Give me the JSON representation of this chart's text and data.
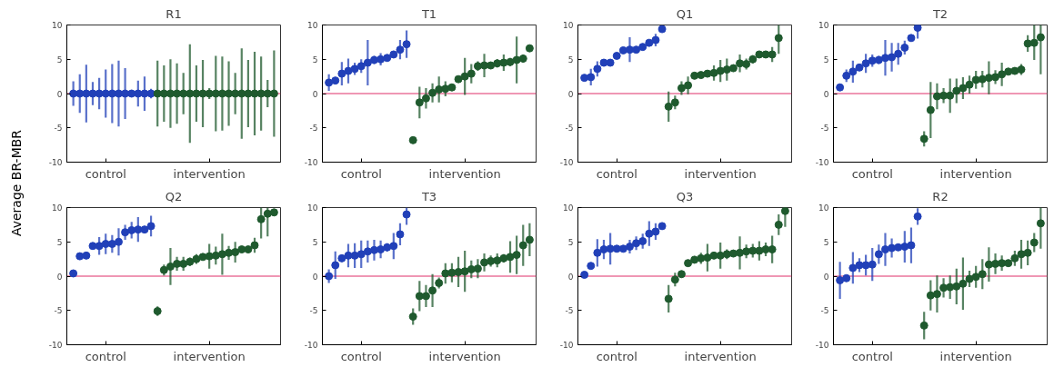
{
  "chart_data": [
    {
      "type": "scatter",
      "title": "R1",
      "ylabel": "Average BR-MBR",
      "categories": [
        null,
        null,
        null,
        null,
        null,
        "control",
        null,
        null,
        null,
        null,
        null,
        null,
        null,
        null,
        null,
        null,
        null,
        null,
        null,
        null,
        null,
        "intervention",
        null,
        null,
        null,
        null,
        null,
        null,
        null,
        null,
        null,
        null
      ],
      "ylim": [
        -10,
        10
      ],
      "yticks": [
        -10,
        -5,
        0,
        5,
        10
      ],
      "grid": false,
      "marker": "circle",
      "ref_lines": [
        {
          "axis": "y",
          "value": 0,
          "color": "#e0306a"
        }
      ],
      "series": [
        {
          "color": "#2140b8",
          "values": [
            0,
            0,
            0,
            0,
            0,
            0,
            0,
            0,
            0,
            0,
            0,
            0,
            0,
            null,
            null,
            null,
            null,
            null,
            null,
            null,
            null,
            null,
            null,
            null,
            null,
            null,
            null,
            null,
            null,
            null,
            null,
            null
          ],
          "errors": [
            1.8,
            2.8,
            4.2,
            1.7,
            2.3,
            3.5,
            4.3,
            4.8,
            3.7,
            0.5,
            1.9,
            2.5,
            0.7,
            null,
            null,
            null,
            null,
            null,
            null,
            null,
            null,
            null,
            null,
            null,
            null,
            null,
            null,
            null,
            null,
            null,
            null,
            null
          ]
        },
        {
          "color": "#1f5a2e",
          "values": [
            null,
            null,
            null,
            null,
            null,
            null,
            null,
            null,
            null,
            null,
            null,
            null,
            null,
            0,
            0,
            0,
            0,
            0,
            0,
            0,
            0,
            0,
            0,
            0,
            0,
            0,
            0,
            0,
            0,
            0,
            0,
            0
          ],
          "errors": [
            null,
            null,
            null,
            null,
            null,
            null,
            null,
            null,
            null,
            null,
            null,
            null,
            null,
            4.8,
            4.1,
            5.0,
            4.4,
            3.0,
            7.2,
            4.1,
            4.9,
            0.8,
            5.5,
            5.4,
            4.7,
            3.0,
            6.6,
            4.9,
            6.1,
            5.4,
            2.0,
            6.3
          ]
        }
      ]
    },
    {
      "type": "scatter",
      "title": "T1",
      "categories": [
        null,
        null,
        null,
        null,
        null,
        "control",
        null,
        null,
        null,
        null,
        null,
        null,
        null,
        null,
        null,
        null,
        null,
        null,
        null,
        null,
        null,
        "intervention",
        null,
        null,
        null,
        null,
        null,
        null,
        null,
        null,
        null,
        null
      ],
      "ylim": [
        -10,
        10
      ],
      "yticks": [
        -10,
        -5,
        0,
        5,
        10
      ],
      "grid": false,
      "marker": "circle",
      "ref_lines": [
        {
          "axis": "y",
          "value": 0,
          "color": "#e0306a"
        }
      ],
      "series": [
        {
          "color": "#2140b8",
          "values": [
            1.6,
            1.9,
            2.9,
            3.3,
            3.6,
            4.0,
            4.5,
            4.9,
            5.0,
            5.2,
            5.7,
            6.4,
            7.2,
            null,
            null,
            null,
            null,
            null,
            null,
            null,
            null,
            null,
            null,
            null,
            null,
            null,
            null,
            null,
            null,
            null,
            null,
            null
          ],
          "errors": [
            1.2,
            0.5,
            1.7,
            1.8,
            0.9,
            1.0,
            3.3,
            0.6,
            0.9,
            0.4,
            0.3,
            1.4,
            2.0,
            null,
            null,
            null,
            null,
            null,
            null,
            null,
            null,
            null,
            null,
            null,
            null,
            null,
            null,
            null,
            null,
            null,
            null,
            null
          ]
        },
        {
          "color": "#1f5a2e",
          "values": [
            null,
            null,
            null,
            null,
            null,
            null,
            null,
            null,
            null,
            null,
            null,
            null,
            null,
            -6.8,
            -1.3,
            -0.7,
            0.1,
            0.6,
            0.7,
            0.9,
            2.1,
            2.5,
            2.9,
            4.0,
            4.1,
            4.1,
            4.4,
            4.5,
            4.6,
            4.9,
            5.1,
            6.6
          ],
          "errors": [
            null,
            null,
            null,
            null,
            null,
            null,
            null,
            null,
            null,
            null,
            null,
            null,
            null,
            null,
            2.3,
            1.5,
            1.4,
            1.9,
            1.1,
            0.3,
            0.3,
            2.7,
            1.4,
            0.7,
            1.7,
            0.4,
            0.6,
            1.2,
            0.6,
            3.4,
            0.6,
            0.3
          ]
        }
      ]
    },
    {
      "type": "scatter",
      "title": "Q1",
      "categories": [
        null,
        null,
        null,
        null,
        null,
        "control",
        null,
        null,
        null,
        null,
        null,
        null,
        null,
        null,
        null,
        null,
        null,
        null,
        null,
        null,
        null,
        "intervention",
        null,
        null,
        null,
        null,
        null,
        null,
        null,
        null,
        null,
        null
      ],
      "ylim": [
        -10,
        10
      ],
      "yticks": [
        -10,
        -5,
        0,
        5,
        10
      ],
      "grid": false,
      "marker": "circle",
      "ref_lines": [
        {
          "axis": "y",
          "value": 0,
          "color": "#e0306a"
        }
      ],
      "series": [
        {
          "color": "#2140b8",
          "values": [
            2.3,
            2.4,
            3.6,
            4.5,
            4.5,
            5.5,
            6.3,
            6.4,
            6.4,
            6.8,
            7.4,
            7.8,
            9.4,
            null,
            null,
            null,
            null,
            null,
            null,
            null,
            null,
            null,
            null,
            null,
            null,
            null,
            null,
            null,
            null,
            null,
            null,
            null
          ],
          "errors": [
            0.3,
            1.2,
            1.1,
            0.5,
            0.3,
            0.3,
            0.4,
            1.8,
            0.3,
            0.3,
            0.4,
            0.9,
            0.3,
            null,
            null,
            null,
            null,
            null,
            null,
            null,
            null,
            null,
            null,
            null,
            null,
            null,
            null,
            null,
            null,
            null,
            null,
            null
          ]
        },
        {
          "color": "#1f5a2e",
          "values": [
            null,
            null,
            null,
            null,
            null,
            null,
            null,
            null,
            null,
            null,
            null,
            null,
            null,
            -1.9,
            -1.3,
            0.8,
            1.2,
            2.6,
            2.7,
            2.9,
            3.0,
            3.3,
            3.5,
            3.7,
            4.4,
            4.3,
            5.0,
            5.7,
            5.7,
            5.7,
            8.1,
            null
          ],
          "errors": [
            null,
            null,
            null,
            null,
            null,
            null,
            null,
            null,
            null,
            null,
            null,
            null,
            null,
            2.2,
            1.0,
            1.0,
            1.3,
            0.4,
            0.3,
            0.3,
            1.1,
            1.6,
            1.6,
            0.3,
            1.3,
            0.8,
            0.6,
            0.3,
            0.5,
            1.1,
            [
              5.8,
              10
            ],
            null
          ]
        }
      ]
    },
    {
      "type": "scatter",
      "title": "T2",
      "categories": [
        null,
        null,
        null,
        null,
        null,
        "control",
        null,
        null,
        null,
        null,
        null,
        null,
        null,
        null,
        null,
        null,
        null,
        null,
        null,
        null,
        null,
        "intervention",
        null,
        null,
        null,
        null,
        null,
        null,
        null,
        null,
        null,
        null
      ],
      "ylim": [
        -10,
        10
      ],
      "yticks": [
        -10,
        -5,
        0,
        5,
        10
      ],
      "grid": false,
      "marker": "circle",
      "ref_lines": [
        {
          "axis": "y",
          "value": 0,
          "color": "#e0306a"
        }
      ],
      "series": [
        {
          "color": "#2140b8",
          "values": [
            0.9,
            2.6,
            3.2,
            3.8,
            4.4,
            4.8,
            4.9,
            5.2,
            5.3,
            5.8,
            6.7,
            8.1,
            9.6,
            null,
            null,
            null,
            null,
            null,
            null,
            null,
            null,
            null,
            null,
            null,
            null,
            null,
            null,
            null,
            null,
            null,
            null,
            null
          ],
          "errors": [
            0.5,
            0.9,
            1.6,
            0.5,
            1.4,
            0.9,
            0.6,
            2.6,
            2.1,
            1.6,
            1.0,
            0.5,
            [
              8.0,
              10
            ],
            null,
            null,
            null,
            null,
            null,
            null,
            null,
            null,
            null,
            null,
            null,
            null,
            null,
            null,
            null,
            null,
            null,
            null,
            null
          ]
        },
        {
          "color": "#1f5a2e",
          "values": [
            null,
            null,
            null,
            null,
            null,
            null,
            null,
            null,
            null,
            null,
            null,
            null,
            null,
            -6.6,
            -2.4,
            -0.4,
            -0.3,
            -0.3,
            0.4,
            0.8,
            1.3,
            2.0,
            2.1,
            2.3,
            2.4,
            2.8,
            3.2,
            3.3,
            3.5,
            7.3,
            7.4,
            8.2
          ],
          "errors": [
            null,
            null,
            null,
            null,
            null,
            null,
            null,
            null,
            null,
            null,
            null,
            null,
            null,
            1.1,
            4.1,
            1.9,
            1.1,
            2.5,
            1.8,
            1.6,
            1.3,
            1.3,
            1.2,
            2.4,
            1.0,
            1.7,
            0.4,
            0.5,
            0.8,
            1.2,
            [
              4.9,
              10
            ],
            [
              2.8,
              10
            ]
          ]
        }
      ]
    },
    {
      "type": "scatter",
      "title": "Q2",
      "categories": [
        null,
        null,
        null,
        null,
        null,
        "control",
        null,
        null,
        null,
        null,
        null,
        null,
        null,
        null,
        null,
        null,
        null,
        null,
        null,
        null,
        null,
        "intervention",
        null,
        null,
        null,
        null,
        null,
        null,
        null,
        null,
        null,
        null
      ],
      "ylim": [
        -10,
        10
      ],
      "yticks": [
        -10,
        -5,
        0,
        5,
        10
      ],
      "grid": false,
      "marker": "circle",
      "ref_lines": [
        {
          "axis": "y",
          "value": 0,
          "color": "#e0306a"
        }
      ],
      "series": [
        {
          "color": "#2140b8",
          "values": [
            0.4,
            2.9,
            3.0,
            4.4,
            4.4,
            4.7,
            4.7,
            5.0,
            6.4,
            6.7,
            6.8,
            6.8,
            7.3,
            null,
            null,
            null,
            null,
            null,
            null,
            null,
            null,
            null,
            null,
            null,
            null,
            null,
            null,
            null,
            null,
            null,
            null,
            null
          ],
          "errors": [
            0.2,
            0.5,
            0.4,
            0.3,
            1.3,
            1.5,
            1.3,
            2.0,
            1.1,
            1.2,
            1.8,
            0.3,
            1.5,
            null,
            null,
            null,
            null,
            null,
            null,
            null,
            null,
            null,
            null,
            null,
            null,
            null,
            null,
            null,
            null,
            null,
            null,
            null
          ]
        },
        {
          "color": "#1f5a2e",
          "values": [
            null,
            null,
            null,
            null,
            null,
            null,
            null,
            null,
            null,
            null,
            null,
            null,
            null,
            -5.1,
            0.9,
            1.4,
            1.8,
            1.8,
            2.1,
            2.5,
            2.8,
            2.9,
            3.0,
            3.2,
            3.4,
            3.5,
            3.9,
            3.9,
            4.5,
            8.3,
            9.1,
            9.3
          ],
          "errors": [
            null,
            null,
            null,
            null,
            null,
            null,
            null,
            null,
            null,
            null,
            null,
            null,
            null,
            0.7,
            0.8,
            2.7,
            1.0,
            1.0,
            0.6,
            0.7,
            0.3,
            1.8,
            1.3,
            3.0,
            1.0,
            1.5,
            0.3,
            0.3,
            1.1,
            [
              5.5,
              10
            ],
            [
              5.8,
              10
            ],
            0.5
          ]
        }
      ]
    },
    {
      "type": "scatter",
      "title": "T3",
      "categories": [
        null,
        null,
        null,
        null,
        null,
        "control",
        null,
        null,
        null,
        null,
        null,
        null,
        null,
        null,
        null,
        null,
        null,
        null,
        null,
        null,
        null,
        "intervention",
        null,
        null,
        null,
        null,
        null,
        null,
        null,
        null,
        null,
        null
      ],
      "ylim": [
        -10,
        10
      ],
      "yticks": [
        -10,
        -5,
        0,
        5,
        10
      ],
      "grid": false,
      "marker": "circle",
      "ref_lines": [
        {
          "axis": "y",
          "value": 0,
          "color": "#e0306a"
        }
      ],
      "series": [
        {
          "color": "#2140b8",
          "values": [
            0.0,
            1.6,
            2.6,
            3.0,
            3.0,
            3.2,
            3.6,
            3.8,
            3.9,
            4.2,
            4.4,
            6.1,
            9.0,
            null,
            null,
            null,
            null,
            null,
            null,
            null,
            null,
            null,
            null,
            null,
            null,
            null,
            null,
            null,
            null,
            null,
            null,
            null
          ],
          "errors": [
            1.0,
            2.0,
            0.5,
            1.7,
            1.8,
            2.0,
            1.6,
            1.5,
            1.3,
            0.6,
            1.9,
            1.6,
            [
              7.5,
              10
            ],
            null,
            null,
            null,
            null,
            null,
            null,
            null,
            null,
            null,
            null,
            null,
            null,
            null,
            null,
            null,
            null,
            null,
            null,
            null
          ]
        },
        {
          "color": "#1f5a2e",
          "values": [
            null,
            null,
            null,
            null,
            null,
            null,
            null,
            null,
            null,
            null,
            null,
            null,
            null,
            -5.9,
            -2.9,
            -2.9,
            -2.1,
            -1.0,
            0.4,
            0.5,
            0.6,
            0.7,
            1.0,
            1.1,
            2.0,
            2.2,
            2.3,
            2.6,
            2.8,
            3.1,
            4.5,
            5.3
          ],
          "errors": [
            null,
            null,
            null,
            null,
            null,
            null,
            null,
            null,
            null,
            null,
            null,
            null,
            null,
            1.2,
            2.2,
            1.6,
            2.4,
            0.8,
            1.5,
            1.4,
            2.2,
            3.0,
            1.3,
            1.4,
            1.3,
            0.8,
            1.0,
            0.6,
            2.3,
            2.8,
            3.0,
            2.4
          ]
        }
      ]
    },
    {
      "type": "scatter",
      "title": "Q3",
      "categories": [
        null,
        null,
        null,
        null,
        null,
        "control",
        null,
        null,
        null,
        null,
        null,
        null,
        null,
        null,
        null,
        null,
        null,
        null,
        null,
        null,
        null,
        "intervention",
        null,
        null,
        null,
        null,
        null,
        null,
        null,
        null,
        null,
        null
      ],
      "ylim": [
        -10,
        10
      ],
      "yticks": [
        -10,
        -5,
        0,
        5,
        10
      ],
      "grid": false,
      "marker": "circle",
      "ref_lines": [
        {
          "axis": "y",
          "value": 0,
          "color": "#e0306a"
        }
      ],
      "series": [
        {
          "color": "#2140b8",
          "values": [
            0.2,
            1.5,
            3.4,
            3.9,
            4.0,
            4.0,
            4.0,
            4.3,
            4.8,
            5.1,
            6.2,
            6.5,
            7.3,
            null,
            null,
            null,
            null,
            null,
            null,
            null,
            null,
            null,
            null,
            null,
            null,
            null,
            null,
            null,
            null,
            null,
            null,
            null
          ],
          "errors": [
            0.2,
            0.2,
            2.0,
            1.4,
            2.3,
            0.4,
            0.4,
            1.0,
            1.0,
            1.1,
            1.8,
            1.2,
            0.2,
            null,
            null,
            null,
            null,
            null,
            null,
            null,
            null,
            null,
            null,
            null,
            null,
            null,
            null,
            null,
            null,
            null,
            null,
            null
          ]
        },
        {
          "color": "#1f5a2e",
          "values": [
            null,
            null,
            null,
            null,
            null,
            null,
            null,
            null,
            null,
            null,
            null,
            null,
            null,
            -3.3,
            -0.5,
            0.3,
            1.9,
            2.4,
            2.6,
            2.7,
            3.0,
            3.0,
            3.2,
            3.3,
            3.4,
            3.6,
            3.7,
            3.7,
            3.9,
            3.9,
            7.5,
            9.5
          ],
          "errors": [
            null,
            null,
            null,
            null,
            null,
            null,
            null,
            null,
            null,
            null,
            null,
            null,
            null,
            2.0,
            1.0,
            0.5,
            0.4,
            0.2,
            0.8,
            2.0,
            0.3,
            1.9,
            0.7,
            0.3,
            2.4,
            1.0,
            1.0,
            1.4,
            1.0,
            2.0,
            1.5,
            [
              7.2,
              10
            ]
          ]
        }
      ]
    },
    {
      "type": "scatter",
      "title": "R2",
      "categories": [
        null,
        null,
        null,
        null,
        null,
        "control",
        null,
        null,
        null,
        null,
        null,
        null,
        null,
        null,
        null,
        null,
        null,
        null,
        null,
        null,
        null,
        "intervention",
        null,
        null,
        null,
        null,
        null,
        null,
        null,
        null,
        null,
        null
      ],
      "ylim": [
        -10,
        10
      ],
      "yticks": [
        -10,
        -5,
        0,
        5,
        10
      ],
      "grid": false,
      "marker": "circle",
      "ref_lines": [
        {
          "axis": "y",
          "value": 0,
          "color": "#e0306a"
        }
      ],
      "series": [
        {
          "color": "#2140b8",
          "values": [
            -0.6,
            -0.3,
            1.2,
            1.6,
            1.6,
            1.7,
            3.2,
            3.9,
            4.1,
            4.2,
            4.3,
            4.5,
            8.7,
            null,
            null,
            null,
            null,
            null,
            null,
            null,
            null,
            null,
            null,
            null,
            null,
            null,
            null,
            null,
            null,
            null,
            null,
            null
          ],
          "errors": [
            2.7,
            0.4,
            2.3,
            1.0,
            1.5,
            2.4,
            1.4,
            2.4,
            1.4,
            0.5,
            2.3,
            2.6,
            1.2,
            null,
            null,
            null,
            null,
            null,
            null,
            null,
            null,
            null,
            null,
            null,
            null,
            null,
            null,
            null,
            null,
            null,
            null,
            null
          ]
        },
        {
          "color": "#1f5a2e",
          "values": [
            null,
            null,
            null,
            null,
            null,
            null,
            null,
            null,
            null,
            null,
            null,
            null,
            null,
            -7.2,
            -2.8,
            -2.6,
            -1.7,
            -1.6,
            -1.5,
            -1.1,
            -0.4,
            -0.1,
            0.3,
            1.7,
            1.8,
            1.9,
            1.9,
            2.6,
            3.2,
            3.4,
            4.9,
            7.7
          ],
          "errors": [
            null,
            null,
            null,
            null,
            null,
            null,
            null,
            null,
            null,
            null,
            null,
            null,
            null,
            2.0,
            2.2,
            2.7,
            1.4,
            1.7,
            2.6,
            3.8,
            1.2,
            1.6,
            2.2,
            2.5,
            1.5,
            1.1,
            0.3,
            1.1,
            2.1,
            1.8,
            1.4,
            [
              4.0,
              10
            ]
          ]
        }
      ]
    }
  ]
}
